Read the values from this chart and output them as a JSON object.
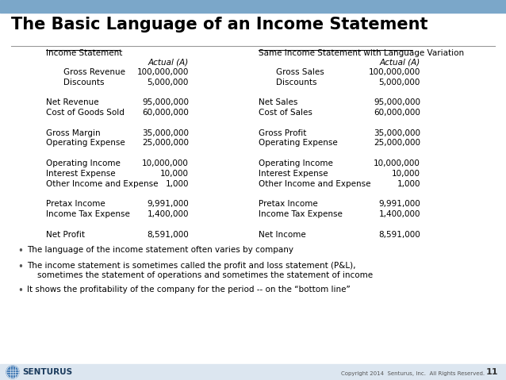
{
  "title": "The Basic Language of an Income Statement",
  "title_fontsize": 15,
  "background_color": "#ffffff",
  "header_bar_color": "#7ba7c9",
  "title_color": "#000000",
  "slide_number": "11",
  "left_header": "Income Statement",
  "right_header": "Same Income Statement with Language Variation",
  "left_rows": [
    {
      "label": "",
      "value": "Actual (A)",
      "indent": false,
      "bold": false,
      "val_only": true
    },
    {
      "label": "Gross Revenue",
      "value": "100,000,000",
      "indent": true,
      "bold": false,
      "val_only": false
    },
    {
      "label": "Discounts",
      "value": "5,000,000",
      "indent": true,
      "bold": false,
      "val_only": false
    },
    {
      "label": "",
      "value": "",
      "indent": false,
      "bold": false,
      "val_only": false
    },
    {
      "label": "Net Revenue",
      "value": "95,000,000",
      "indent": false,
      "bold": false,
      "val_only": false
    },
    {
      "label": "Cost of Goods Sold",
      "value": "60,000,000",
      "indent": false,
      "bold": false,
      "val_only": false
    },
    {
      "label": "",
      "value": "",
      "indent": false,
      "bold": false,
      "val_only": false
    },
    {
      "label": "Gross Margin",
      "value": "35,000,000",
      "indent": false,
      "bold": false,
      "val_only": false
    },
    {
      "label": "Operating Expense",
      "value": "25,000,000",
      "indent": false,
      "bold": false,
      "val_only": false
    },
    {
      "label": "",
      "value": "",
      "indent": false,
      "bold": false,
      "val_only": false
    },
    {
      "label": "Operating Income",
      "value": "10,000,000",
      "indent": false,
      "bold": false,
      "val_only": false
    },
    {
      "label": "Interest Expense",
      "value": "10,000",
      "indent": false,
      "bold": false,
      "val_only": false
    },
    {
      "label": "Other Income and Expense",
      "value": "1,000",
      "indent": false,
      "bold": false,
      "val_only": false
    },
    {
      "label": "",
      "value": "",
      "indent": false,
      "bold": false,
      "val_only": false
    },
    {
      "label": "Pretax Income",
      "value": "9,991,000",
      "indent": false,
      "bold": true,
      "val_only": false
    },
    {
      "label": "Income Tax Expense",
      "value": "1,400,000",
      "indent": false,
      "bold": true,
      "val_only": false
    },
    {
      "label": "",
      "value": "",
      "indent": false,
      "bold": false,
      "val_only": false
    },
    {
      "label": "Net Profit",
      "value": "8,591,000",
      "indent": false,
      "bold": false,
      "val_only": false
    }
  ],
  "right_rows": [
    {
      "label": "",
      "value": "Actual (A)",
      "indent": false,
      "bold": false,
      "val_only": true
    },
    {
      "label": "Gross Sales",
      "value": "100,000,000",
      "indent": true,
      "bold": false,
      "val_only": false
    },
    {
      "label": "Discounts",
      "value": "5,000,000",
      "indent": true,
      "bold": false,
      "val_only": false
    },
    {
      "label": "",
      "value": "",
      "indent": false,
      "bold": false,
      "val_only": false
    },
    {
      "label": "Net Sales",
      "value": "95,000,000",
      "indent": false,
      "bold": false,
      "val_only": false
    },
    {
      "label": "Cost of Sales",
      "value": "60,000,000",
      "indent": false,
      "bold": false,
      "val_only": false
    },
    {
      "label": "",
      "value": "",
      "indent": false,
      "bold": false,
      "val_only": false
    },
    {
      "label": "Gross Profit",
      "value": "35,000,000",
      "indent": false,
      "bold": false,
      "val_only": false
    },
    {
      "label": "Operating Expense",
      "value": "25,000,000",
      "indent": false,
      "bold": false,
      "val_only": false
    },
    {
      "label": "",
      "value": "",
      "indent": false,
      "bold": false,
      "val_only": false
    },
    {
      "label": "Operating Income",
      "value": "10,000,000",
      "indent": false,
      "bold": false,
      "val_only": false
    },
    {
      "label": "Interest Expense",
      "value": "10,000",
      "indent": false,
      "bold": false,
      "val_only": false
    },
    {
      "label": "Other Income and Expense",
      "value": "1,000",
      "indent": false,
      "bold": false,
      "val_only": false
    },
    {
      "label": "",
      "value": "",
      "indent": false,
      "bold": false,
      "val_only": false
    },
    {
      "label": "Pretax Income",
      "value": "9,991,000",
      "indent": false,
      "bold": true,
      "val_only": false
    },
    {
      "label": "Income Tax Expense",
      "value": "1,400,000",
      "indent": false,
      "bold": true,
      "val_only": false
    },
    {
      "label": "",
      "value": "",
      "indent": false,
      "bold": false,
      "val_only": false
    },
    {
      "label": "Net Income",
      "value": "8,591,000",
      "indent": false,
      "bold": false,
      "val_only": false
    }
  ],
  "bullets": [
    "The language of the income statement often varies by company",
    "The income statement is sometimes called the profit and loss statement (P&L),",
    "    sometimes the statement of operations and sometimes the statement of income",
    "It shows the profitability of the company for the period -- on the “bottom line”"
  ],
  "copyright": "Copyright 2014  Senturus, Inc.  All Rights Reserved.",
  "logo_text": "SENTURUS"
}
